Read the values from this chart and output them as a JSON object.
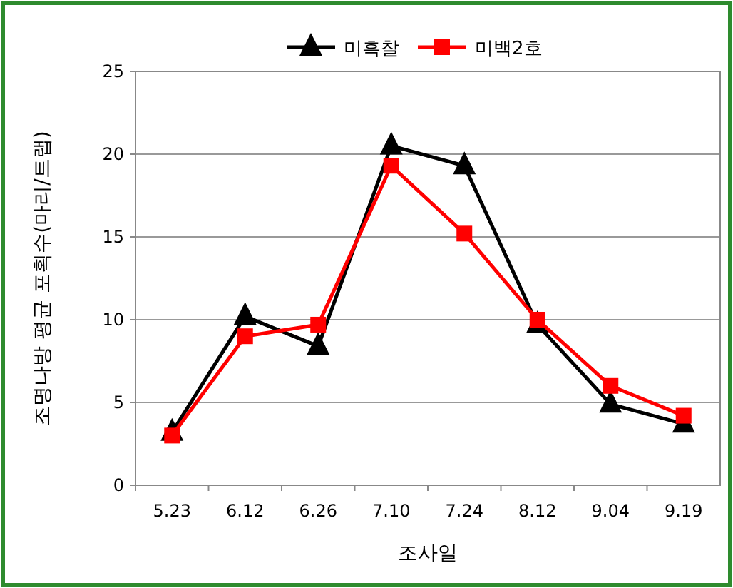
{
  "chart_data": {
    "type": "line",
    "xlabel": "조사일",
    "ylabel": "조명나방 평균 포획수(마리/트랩)",
    "categories": [
      "5.23",
      "6.12",
      "6.26",
      "7.10",
      "7.24",
      "8.12",
      "9.04",
      "9.19"
    ],
    "series": [
      {
        "name": "미흑찰",
        "color": "#000000",
        "marker": "triangle",
        "values": [
          3.2,
          10.2,
          8.4,
          20.5,
          19.3,
          9.7,
          4.9,
          3.7
        ]
      },
      {
        "name": "미백2호",
        "color": "#ff0000",
        "marker": "square",
        "values": [
          3.0,
          9.0,
          9.7,
          19.3,
          15.2,
          10.0,
          6.0,
          4.2
        ]
      }
    ],
    "ylim": [
      0,
      25
    ],
    "yticks": [
      0,
      5,
      10,
      15,
      20,
      25
    ],
    "grid": "y",
    "legend": "top"
  }
}
